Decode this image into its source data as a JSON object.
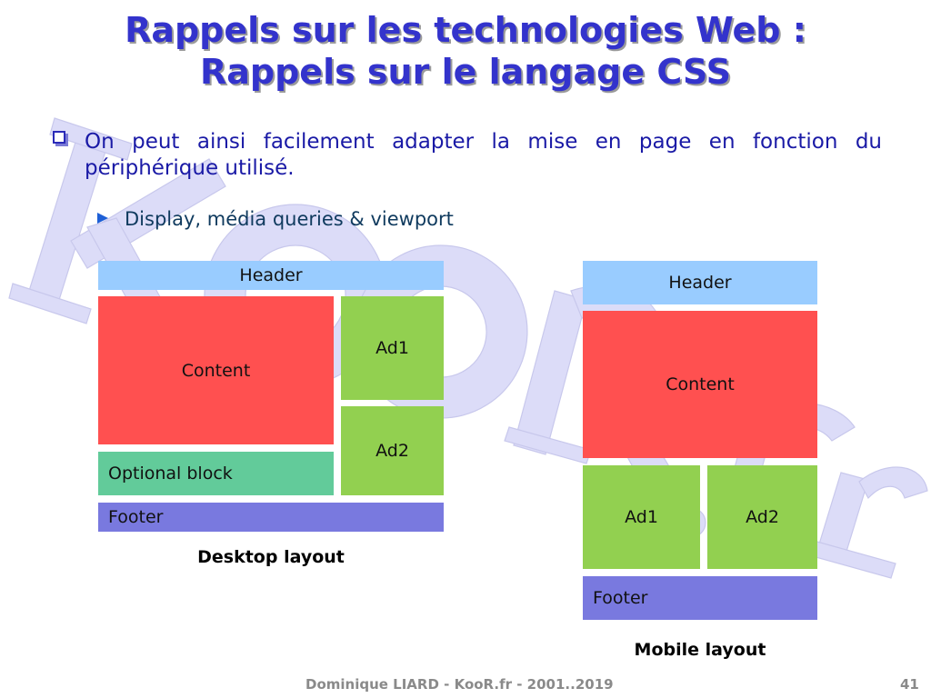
{
  "slide": {
    "title_line1": "Rappels sur les technologies Web :",
    "title_line2": "Rappels sur le langage CSS",
    "bullet_text": "On peut ainsi facilement adapter la mise en page en fonction du périphérique utilisé.",
    "sub_bullet_text": "Display, média queries & viewport"
  },
  "desktop": {
    "header": "Header",
    "content": "Content",
    "ad1": "Ad1",
    "ad2": "Ad2",
    "optional": "Optional block",
    "footer": "Footer",
    "caption": "Desktop layout"
  },
  "mobile": {
    "header": "Header",
    "content": "Content",
    "ad1": "Ad1",
    "ad2": "Ad2",
    "footer": "Footer",
    "caption": "Mobile layout"
  },
  "footer": {
    "text": "Dominique LIARD - KooR.fr - 2001..2019",
    "page": "41"
  },
  "watermark": {
    "text": "KooR.fr"
  },
  "colors": {
    "title": "#3333cc",
    "header": "#99ccff",
    "content": "#ff5050",
    "ad": "#92d050",
    "optional": "#62cb9a",
    "footer_block": "#7979df",
    "watermark": "#dcdcf8"
  }
}
